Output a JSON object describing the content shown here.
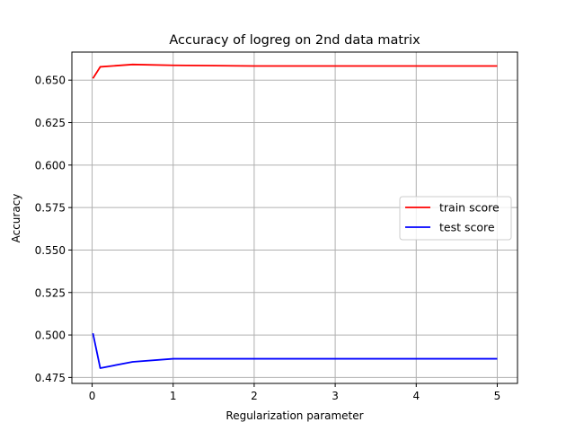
{
  "chart_data": {
    "type": "line",
    "title": "Accuracy of logreg on 2nd data matrix",
    "xlabel": "Regularization parameter",
    "ylabel": "Accuracy",
    "xlim": [
      -0.25,
      5.25
    ],
    "ylim": [
      0.4715,
      0.6665
    ],
    "xticks": [
      0,
      1,
      2,
      3,
      4,
      5
    ],
    "xtick_labels": [
      "0",
      "1",
      "2",
      "3",
      "4",
      "5"
    ],
    "yticks": [
      0.475,
      0.5,
      0.525,
      0.55,
      0.575,
      0.6,
      0.625,
      0.65
    ],
    "ytick_labels": [
      "0.475",
      "0.500",
      "0.525",
      "0.550",
      "0.575",
      "0.600",
      "0.625",
      "0.650"
    ],
    "grid": true,
    "legend_position": "center-right",
    "series": [
      {
        "name": "train score",
        "color": "#ff0000",
        "x": [
          0.01,
          0.1,
          0.5,
          1,
          2,
          3,
          4,
          5
        ],
        "y": [
          0.651,
          0.6578,
          0.6592,
          0.6587,
          0.6583,
          0.6583,
          0.6583,
          0.6583
        ]
      },
      {
        "name": "test score",
        "color": "#0000ff",
        "x": [
          0.01,
          0.1,
          0.5,
          1,
          2,
          3,
          4,
          5
        ],
        "y": [
          0.501,
          0.4805,
          0.4842,
          0.486,
          0.486,
          0.486,
          0.486,
          0.486
        ]
      }
    ]
  }
}
